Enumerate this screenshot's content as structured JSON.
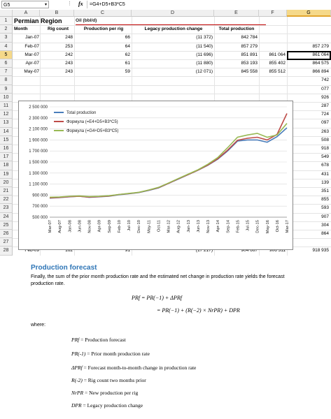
{
  "formula_bar": {
    "name_box": "G5",
    "fx_label": "fx",
    "formula": "=G4+D5+B3*C5"
  },
  "columns": [
    "A",
    "B",
    "C",
    "D",
    "E",
    "F",
    "G"
  ],
  "rows": [
    "1",
    "2",
    "3",
    "4",
    "5",
    "6",
    "7",
    "8",
    "9",
    "10",
    "11",
    "12",
    "13",
    "14",
    "15",
    "16",
    "17",
    "18",
    "19",
    "20",
    "21",
    "22",
    "23",
    "24",
    "25",
    "26",
    "27",
    "28"
  ],
  "header": {
    "title": "Permian Region",
    "unit": "Oil (bbl/d)",
    "month": "Month",
    "rig_count": "Rig count",
    "prod_per_rig": "Production per rig",
    "legacy": "Legacy production change",
    "total": "Total production"
  },
  "table": [
    {
      "month": "Jan-07",
      "rig": "248",
      "ppr": "66",
      "legacy": "(11 372)",
      "total": "842 784",
      "f": "",
      "g": ""
    },
    {
      "month": "Feb-07",
      "rig": "253",
      "ppr": "64",
      "legacy": "(11 540)",
      "total": "857 279",
      "f": "",
      "g": "857 279"
    },
    {
      "month": "Mar-07",
      "rig": "242",
      "ppr": "62",
      "legacy": "(11 696)",
      "total": "851 891",
      "f": "861 064",
      "g": "861 064"
    },
    {
      "month": "Apr-07",
      "rig": "243",
      "ppr": "61",
      "legacy": "(11 880)",
      "total": "853 193",
      "f": "855 402",
      "g": "864 575"
    },
    {
      "month": "May-07",
      "rig": "243",
      "ppr": "59",
      "legacy": "(12 071)",
      "total": "845 558",
      "f": "855 512",
      "g": "866 894"
    }
  ],
  "g_col_hidden_rows": [
    "742",
    "077",
    "926",
    "287",
    "724",
    "097",
    "263",
    "508",
    "918",
    "549",
    "678",
    "431",
    "139",
    "351",
    "855",
    "593",
    "907",
    "304",
    "864"
  ],
  "row28": {
    "month": "Feb-09",
    "rig": "162",
    "ppr": "91",
    "legacy": "(17 217)",
    "total": "904 667",
    "f": "906 311",
    "g": "918 935"
  },
  "chart_data": {
    "type": "line",
    "title": "",
    "y_ticks": [
      "2 500 000",
      "2 300 000",
      "2 100 000",
      "1 900 000",
      "1 700 000",
      "1 500 000",
      "1 300 000",
      "1 100 000",
      "900 000",
      "700 000",
      "500 000"
    ],
    "ylim": [
      500000,
      2500000
    ],
    "x_ticks": [
      "Mar-07",
      "Aug-07",
      "Jan-08",
      "Jun-08",
      "Nov-08",
      "Apr-09",
      "Sep-09",
      "Feb-10",
      "Jul-10",
      "Dec-10",
      "May-11",
      "Oct-11",
      "Mar-12",
      "Aug-12",
      "Jan-13",
      "Jun-13",
      "Nov-13",
      "Apr-14",
      "Sep-14",
      "Feb-15",
      "Jul-15",
      "Dec-15",
      "May-16",
      "Oct-16",
      "Mar-17"
    ],
    "legend_placement": "top-left",
    "series": [
      {
        "name": "Total production",
        "color": "#4a7ebb",
        "values": [
          845000,
          855000,
          870000,
          880000,
          860000,
          870000,
          880000,
          905000,
          925000,
          945000,
          985000,
          1030000,
          1110000,
          1190000,
          1270000,
          1350000,
          1440000,
          1550000,
          1700000,
          1880000,
          1900000,
          1900000,
          1860000,
          1960000,
          2120000
        ]
      },
      {
        "name": "Формула (=E4+D5+B3*C5)",
        "color": "#be4b48",
        "values": [
          850000,
          858000,
          872000,
          878000,
          864000,
          872000,
          884000,
          910000,
          928000,
          948000,
          990000,
          1035000,
          1112000,
          1195000,
          1272000,
          1352000,
          1445000,
          1560000,
          1715000,
          1895000,
          1930000,
          1950000,
          1900000,
          2000000,
          2380000
        ]
      },
      {
        "name": "Формула (=G4+D5+B3*C5)",
        "color": "#98b954",
        "values": [
          862000,
          866000,
          880000,
          885000,
          875000,
          878000,
          890000,
          912000,
          932000,
          950000,
          992000,
          1040000,
          1118000,
          1200000,
          1280000,
          1360000,
          1460000,
          1580000,
          1760000,
          1950000,
          1990000,
          2020000,
          1950000,
          1990000,
          2200000
        ]
      }
    ]
  },
  "doc": {
    "heading": "Production forecast",
    "paragraph": "Finally, the sum of the prior month production rate and the estimated net change in production rate yields the forecast production rate.",
    "eq1": "PRf = PR(−1) + ΔPRf",
    "eq2": "= PR(−1) + (R(−2) × NrPR) + DPR",
    "where": "where:",
    "defs": [
      {
        "sym": "PRf",
        "text": " = Production forecast"
      },
      {
        "sym": "PR(-1)",
        "text": " = Prior month production rate"
      },
      {
        "sym": "ΔPRf",
        "text": " = Forecast month-to-month change in production rate"
      },
      {
        "sym": "R(-2)",
        "text": " = Rig count two months prior"
      },
      {
        "sym": "NrPR",
        "text": " = New production per rig"
      },
      {
        "sym": "DPR",
        "text": " = Legacy production change"
      }
    ]
  }
}
